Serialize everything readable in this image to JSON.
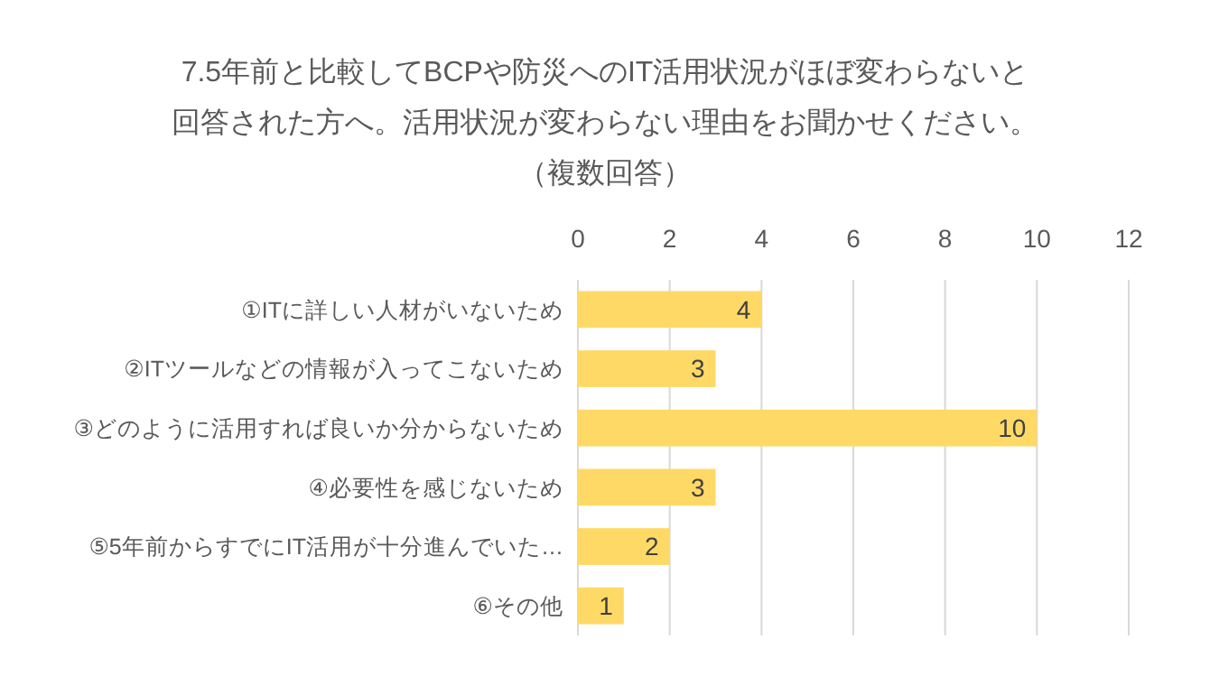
{
  "chart_data": {
    "type": "bar",
    "orientation": "horizontal",
    "title": "7.5年前と比較してBCPや防災へのIT活用状況がほぼ変わらないと回答された方へ。活用状況が変わらない理由をお聞かせください。",
    "subtitle": "（複数回答）",
    "categories": [
      "①ITに詳しい人材がいないため",
      "②ITツールなどの情報が入ってこないため",
      "③どのように活用すれば良いか分からないため",
      "④必要性を感じないため",
      "⑤5年前からすでにIT活用が十分進んでいた…",
      "⑥その他"
    ],
    "values": [
      4,
      3,
      10,
      3,
      2,
      1
    ],
    "color": "#ffd966",
    "xlim": [
      0,
      12
    ],
    "xticks": [
      0,
      2,
      4,
      6,
      8,
      10,
      12
    ],
    "grid": "x",
    "data_labels": true
  }
}
